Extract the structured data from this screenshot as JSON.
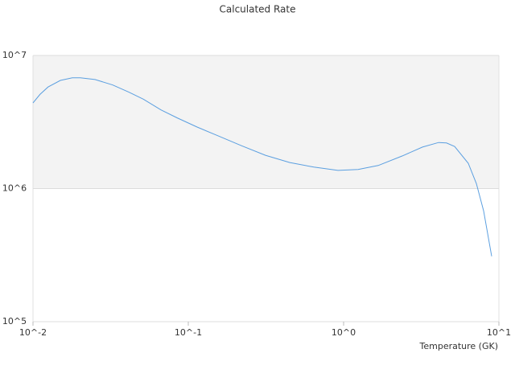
{
  "chart_data": {
    "type": "line",
    "title": "Calculated Rate",
    "x_label": "Temperature (GK)",
    "x": [
      0.01,
      0.0111,
      0.0125,
      0.015,
      0.0179,
      0.0202,
      0.0251,
      0.0326,
      0.0414,
      0.0513,
      0.0667,
      0.0846,
      0.114,
      0.154,
      0.22,
      0.314,
      0.45,
      0.643,
      0.92,
      1.24,
      1.67,
      2.39,
      3.22,
      4.09,
      4.6,
      5.19,
      6.35,
      7.16,
      7.97,
      8.98
    ],
    "series": [
      {
        "name": "Calculated Rate",
        "color": "#5b9fe0",
        "values": [
          4400000,
          5100000,
          5800000,
          6500000,
          6800000,
          6800000,
          6600000,
          6000000,
          5300000,
          4700000,
          3900000,
          3400000,
          2900000,
          2500000,
          2100000,
          1780000,
          1570000,
          1450000,
          1370000,
          1390000,
          1490000,
          1760000,
          2050000,
          2220000,
          2200000,
          2070000,
          1550000,
          1090000,
          680000,
          310000
        ]
      }
    ],
    "xlim": [
      0.01,
      10
    ],
    "ylim": [
      100000,
      10000000
    ],
    "xticks": [
      {
        "value": 0.01,
        "label": "10^-2"
      },
      {
        "value": 0.1,
        "label": "10^-1"
      },
      {
        "value": 1,
        "label": "10^0"
      },
      {
        "value": 10,
        "label": "10^1"
      }
    ],
    "yticks": [
      {
        "value": 100000,
        "label": "10^5"
      },
      {
        "value": 1000000,
        "label": "10^6"
      },
      {
        "value": 10000000,
        "label": "10^7"
      }
    ],
    "xlog": true,
    "ylog": true,
    "grid": true
  }
}
